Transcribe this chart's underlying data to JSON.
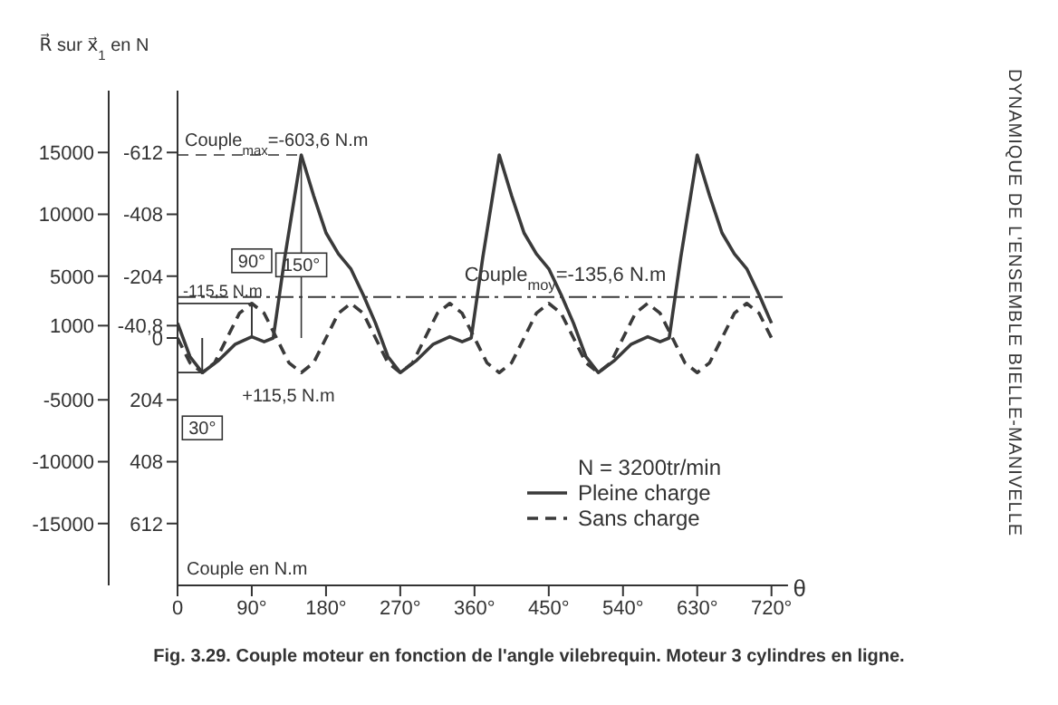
{
  "chart_data": {
    "type": "line",
    "ylabel": "R⃗ sur x⃗$_{1}$ en N",
    "y2label": "Couple en N.m",
    "xlabel": "θ",
    "legend_title": "N = 3200tr/min",
    "legend": "bottom right",
    "xlim": [
      0,
      740
    ],
    "xticks": [
      0,
      {
        "value": 90,
        "label": "90°"
      },
      {
        "value": 180,
        "label": "180°"
      },
      {
        "value": 270,
        "label": "270°"
      },
      {
        "value": 360,
        "label": "360°"
      },
      {
        "value": 450,
        "label": "450°"
      },
      {
        "value": 540,
        "label": "540°"
      },
      {
        "value": 630,
        "label": "630°"
      },
      {
        "value": 720,
        "label": "720°"
      }
    ],
    "ylim": [
      -20000,
      20000
    ],
    "yticks": [
      15000,
      10000,
      5000,
      1000,
      -5000,
      -10000,
      -15000
    ],
    "y2lim": [
      816,
      -816
    ],
    "y2ticks": [
      -612,
      -408,
      -204,
      {
        "value": -40.8,
        "label": "-40,8"
      },
      0,
      204,
      408,
      612
    ],
    "series": [
      {
        "name": "Pleine charge",
        "color": "#3a3a3a",
        "line_style": "solid",
        "x": [
          0,
          15,
          30,
          50,
          70,
          90,
          105,
          116,
          130,
          150,
          165,
          180,
          195,
          210,
          225,
          240,
          255,
          270,
          290,
          310,
          330,
          345,
          356,
          370,
          390,
          405,
          420,
          435,
          450,
          465,
          480,
          495,
          510,
          530,
          550,
          570,
          585,
          596,
          610,
          630,
          645,
          660,
          675,
          690,
          705,
          720
        ],
        "values": [
          1200,
          -1500,
          -2800,
          -1800,
          -500,
          100,
          -300,
          0,
          6500,
          14800,
          11500,
          8500,
          6800,
          5600,
          3500,
          1200,
          -1500,
          -2800,
          -1800,
          -500,
          100,
          -300,
          0,
          6500,
          14800,
          11500,
          8500,
          6800,
          5600,
          3500,
          1200,
          -1500,
          -2800,
          -1800,
          -500,
          100,
          -300,
          0,
          6500,
          14800,
          11500,
          8500,
          6800,
          5600,
          3500,
          1200
        ]
      },
      {
        "name": "Sans charge",
        "color": "#3a3a3a",
        "line_style": "dashed",
        "x": [
          0,
          15,
          30,
          45,
          60,
          75,
          90,
          105,
          120,
          135,
          150,
          165,
          180,
          195,
          210,
          225,
          240,
          255,
          270,
          285,
          300,
          315,
          330,
          345,
          360,
          375,
          390,
          405,
          420,
          435,
          450,
          465,
          480,
          495,
          510,
          525,
          540,
          555,
          570,
          585,
          600,
          615,
          630,
          645,
          660,
          675,
          690,
          705,
          720
        ],
        "values": [
          0,
          -2000,
          -2800,
          -2000,
          0,
          2000,
          2800,
          2000,
          0,
          -2000,
          -2800,
          -2000,
          0,
          2000,
          2800,
          2000,
          0,
          -2000,
          -2800,
          -2000,
          0,
          2000,
          2800,
          2000,
          0,
          -2000,
          -2800,
          -2000,
          0,
          2000,
          2800,
          2000,
          0,
          -2000,
          -2800,
          -2000,
          0,
          2000,
          2800,
          2000,
          0,
          -2000,
          -2800,
          -2000,
          0,
          2000,
          2800,
          2000,
          0
        ]
      }
    ],
    "ref_lines": [
      {
        "axis": "y2",
        "value": -135.6,
        "label": "Couple$_{moy}$=-135,6 N.m",
        "line_style": "dashed",
        "color": "#3a3a3a"
      }
    ],
    "annotations": [
      {
        "text": "Couple$_{max}$=-603,6 N.m",
        "x": 150,
        "y": 14800
      },
      {
        "text": "150°",
        "x": 150
      },
      {
        "text": "90°",
        "x": 90,
        "y": 2800
      },
      {
        "text": "-115,5 N.m",
        "x": 90,
        "y": 2800
      },
      {
        "text": "30°",
        "x": 30,
        "y": -2800
      },
      {
        "text": "+115,5 N.m",
        "x": 30,
        "y": -2800
      },
      "DYNAMIQUE DE L'ENSEMBLE BIELLE-MANIVELLE",
      "Fig. 3.29. Couple moteur en fonction de l'angle vilebrequin. Moteur 3 cylindres en ligne."
    ]
  }
}
